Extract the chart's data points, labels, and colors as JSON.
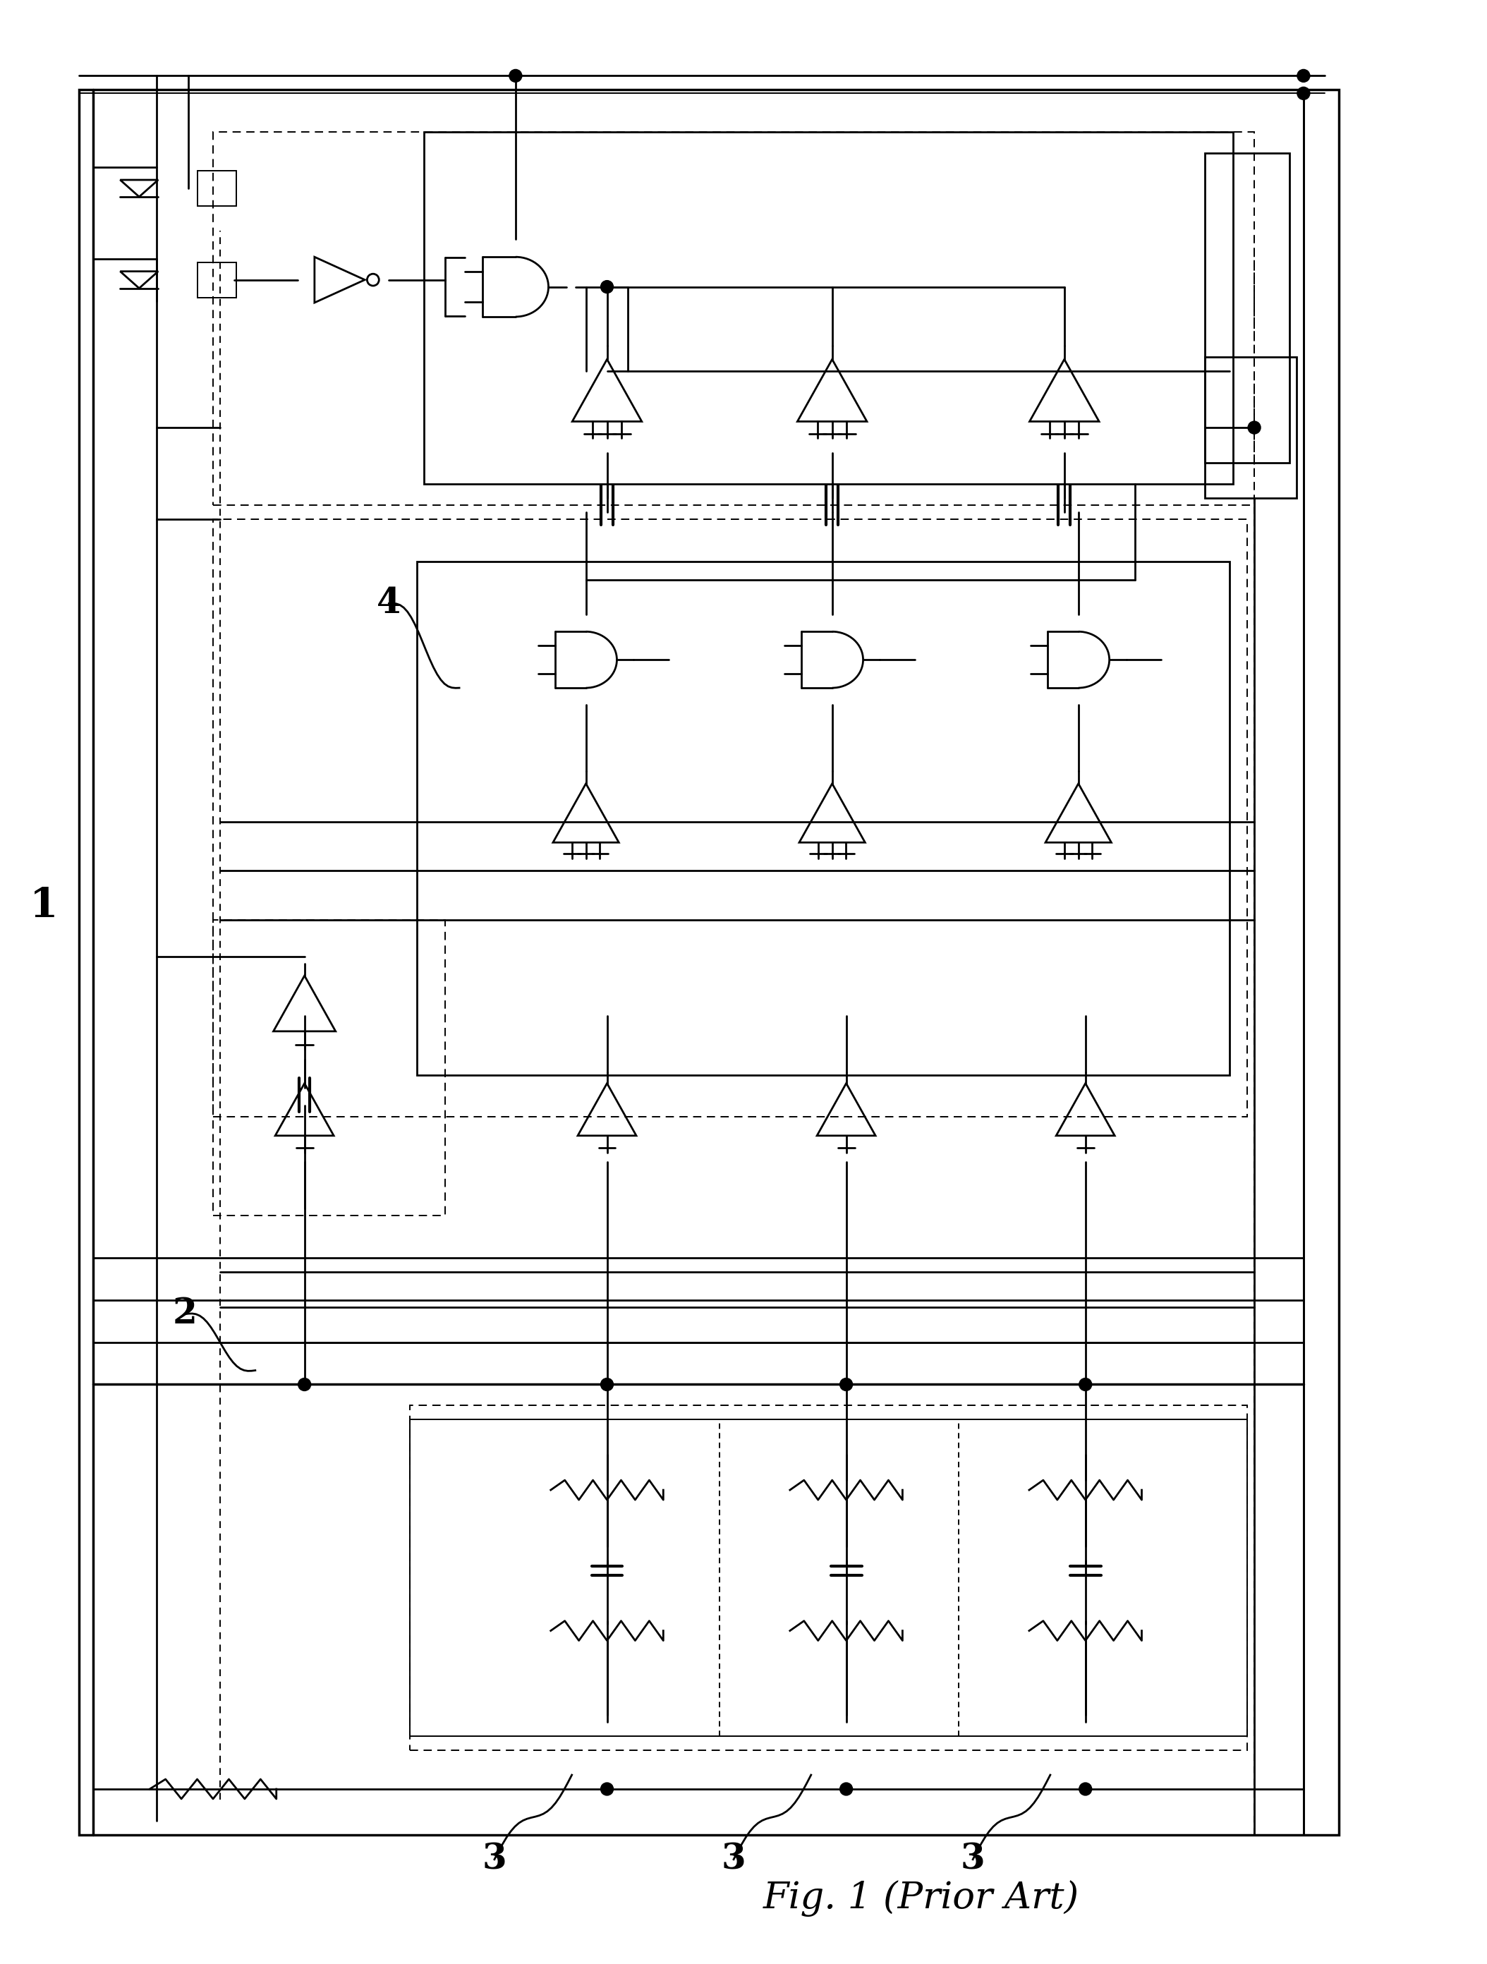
{
  "title": "Fig. 1 (Prior Art)",
  "bg_color": "#ffffff",
  "lc": "#000000",
  "lw": 2.0,
  "lw_thin": 1.4,
  "lw_thick": 2.5,
  "figw": 21.08,
  "figh": 27.84
}
